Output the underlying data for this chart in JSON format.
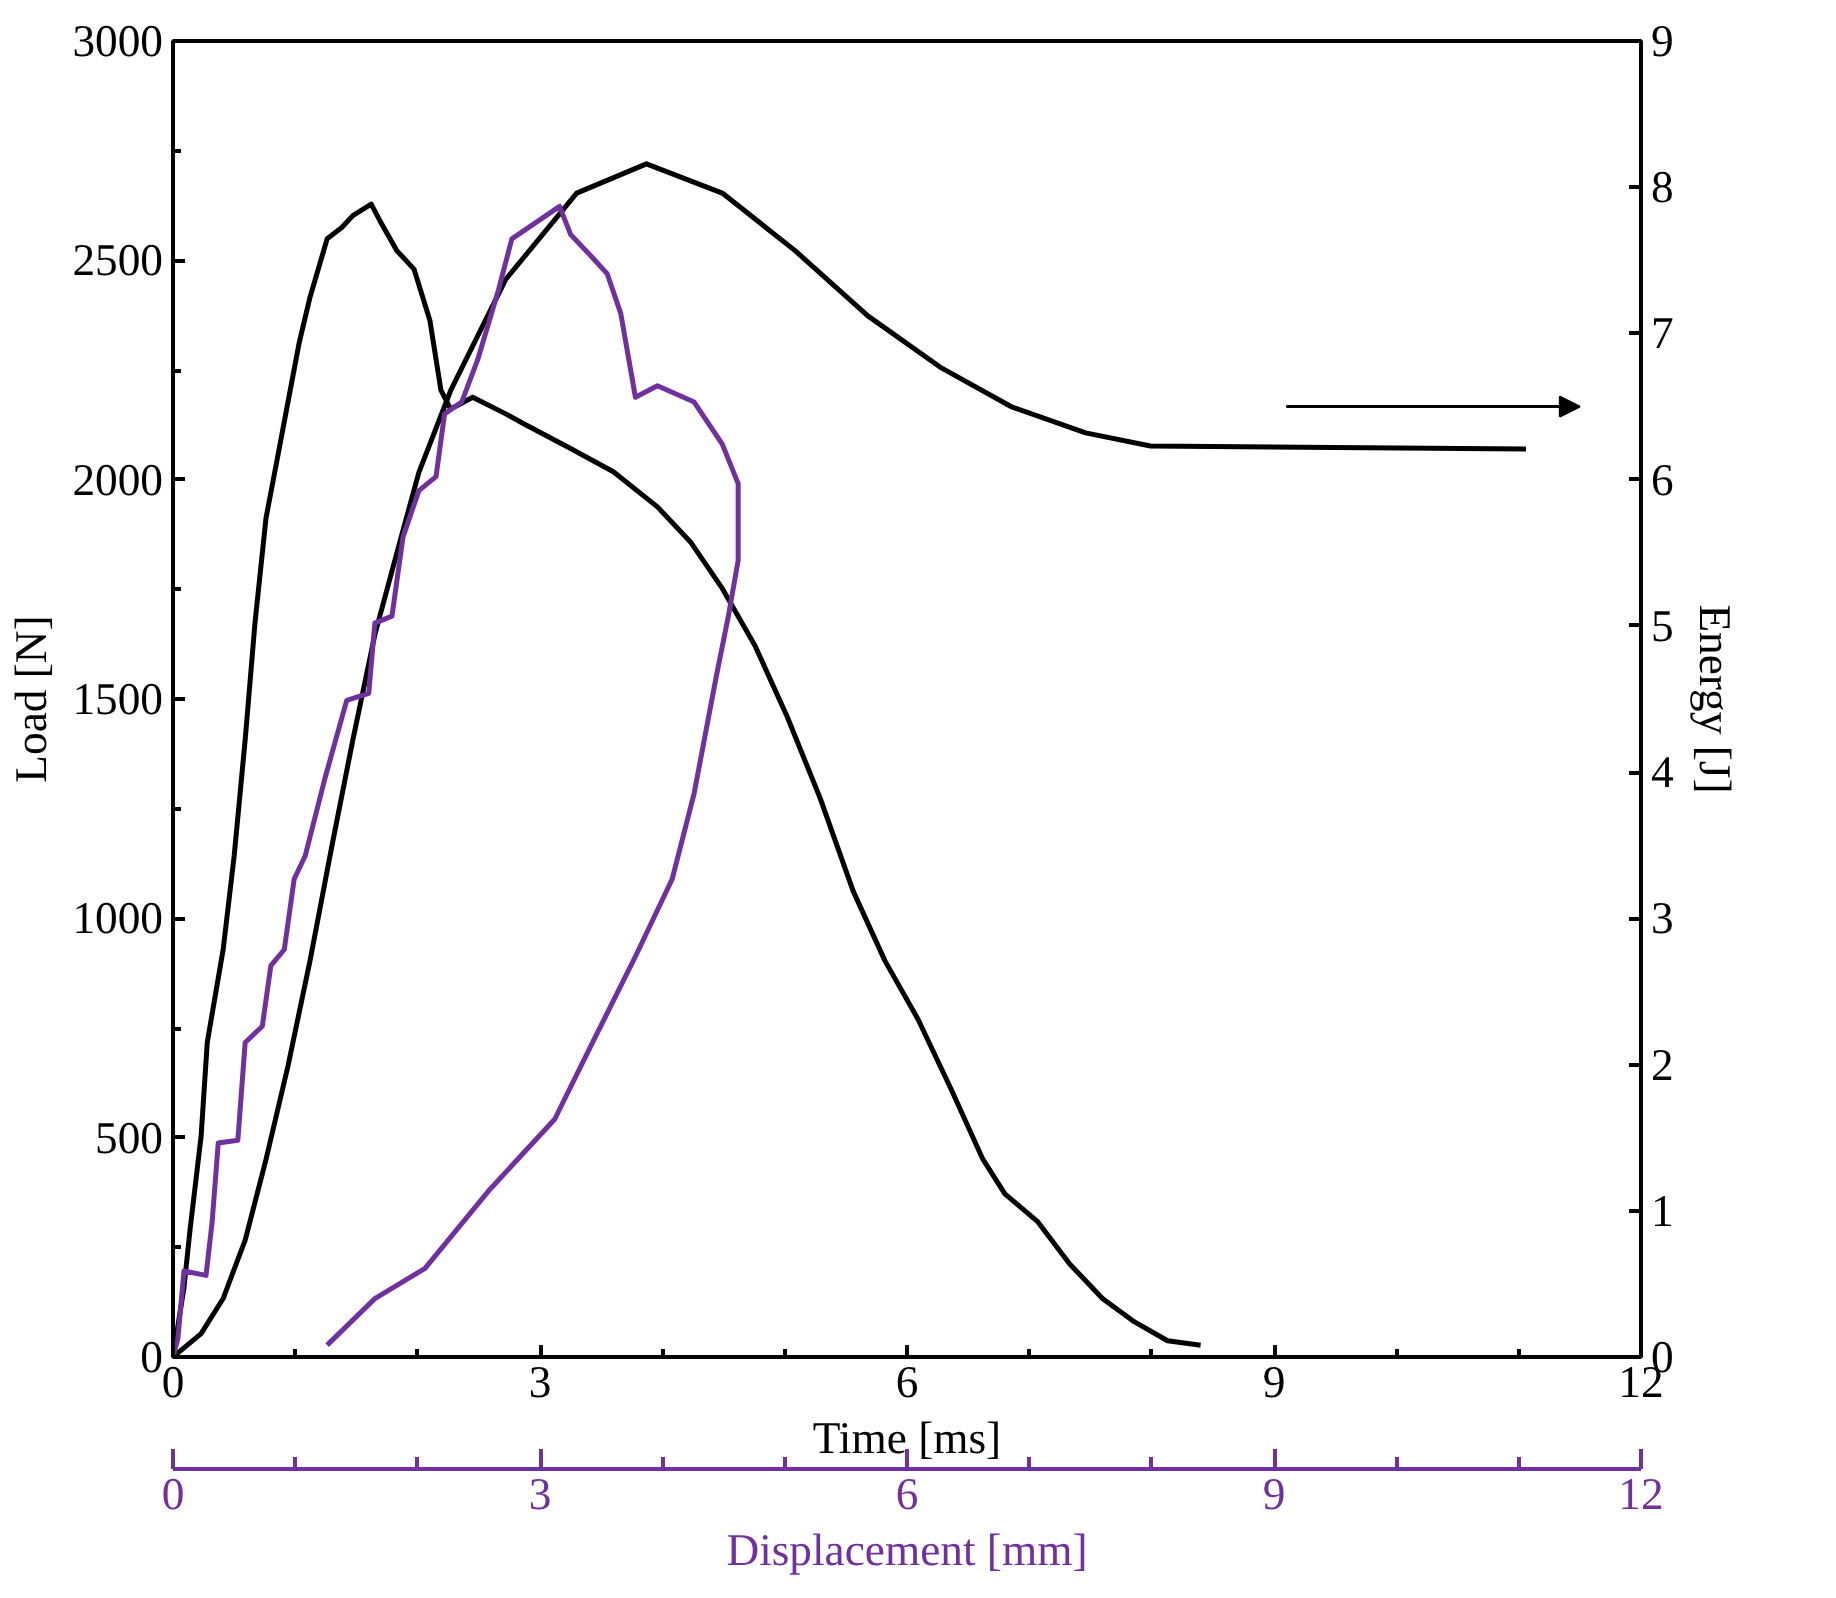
{
  "chart_data": {
    "type": "line",
    "xlabel": "Time [ms]",
    "ylabel": "Load [N]",
    "y2label": "Energy [J]",
    "x2label": "Displacement [mm]",
    "xlim": [
      0,
      12
    ],
    "xticks": [
      0,
      3,
      6,
      9,
      12
    ],
    "ylim": [
      0,
      3000
    ],
    "yticks": [
      0,
      500,
      1000,
      1500,
      2000,
      2500,
      3000
    ],
    "y2lim": [
      0,
      9
    ],
    "y2ticks": [
      0,
      1,
      2,
      3,
      4,
      5,
      6,
      7,
      8,
      9
    ],
    "x2lim": [
      0,
      12
    ],
    "x2ticks": [
      0,
      3,
      6,
      9,
      12
    ],
    "grid": false,
    "marker": "none",
    "line_style": "solid",
    "series": [
      {
        "color": "#000000",
        "x": [
          0,
          0.09,
          0.14,
          0.23,
          0.28,
          0.41,
          0.5,
          0.59,
          0.67,
          0.76,
          0.85,
          0.94,
          1.03,
          1.12,
          1.26,
          1.38,
          1.47,
          1.62,
          1.69,
          1.83,
          1.97,
          2.1,
          2.19,
          2.27,
          2.45,
          2.72,
          2.89,
          3.25,
          3.6,
          3.96,
          4.23,
          4.49,
          4.76,
          5.02,
          5.29,
          5.56,
          5.82,
          6.09,
          6.36,
          6.62,
          6.8,
          7.07,
          7.33,
          7.6,
          7.86,
          8.13,
          8.4
        ],
        "values": [
          0,
          159,
          292,
          504,
          717,
          929,
          1142,
          1407,
          1673,
          1912,
          2044,
          2177,
          2310,
          2416,
          2549,
          2575,
          2602,
          2628,
          2591,
          2522,
          2480,
          2363,
          2204,
          2161,
          2188,
          2150,
          2124,
          2071,
          2018,
          1938,
          1858,
          1752,
          1620,
          1460,
          1274,
          1062,
          903,
          770,
          611,
          451,
          372,
          308,
          212,
          133,
          80,
          37,
          27
        ]
      },
      {
        "color": "#000000",
        "axis": "y2",
        "x": [
          0,
          0.23,
          0.41,
          0.59,
          0.76,
          0.94,
          1.12,
          1.3,
          1.47,
          1.65,
          1.83,
          2.01,
          2.27,
          2.72,
          3.3,
          3.87,
          4.49,
          5.08,
          5.68,
          6.27,
          6.85,
          7.46,
          7.99,
          11.06
        ],
        "values": [
          0,
          0.16,
          0.4,
          0.8,
          1.35,
          1.99,
          2.71,
          3.5,
          4.22,
          4.94,
          5.5,
          6.05,
          6.61,
          7.37,
          7.96,
          8.16,
          7.96,
          7.57,
          7.12,
          6.77,
          6.5,
          6.32,
          6.23,
          6.21
        ]
      },
      {
        "color": "#7030a0",
        "axis": "x2",
        "x": [
          0,
          0.04,
          0.09,
          0.27,
          0.32,
          0.37,
          0.53,
          0.59,
          0.73,
          0.8,
          0.91,
          0.99,
          1.08,
          1.24,
          1.42,
          1.6,
          1.65,
          1.79,
          1.88,
          2.01,
          2.15,
          2.22,
          2.36,
          2.49,
          2.66,
          2.77,
          3.16,
          3.25,
          3.43,
          3.55,
          3.66,
          3.78,
          3.96,
          4.26,
          4.49,
          4.62,
          4.62,
          4.54,
          4.44,
          4.26,
          4.08,
          3.78,
          3.43,
          3.12,
          2.59,
          2.06,
          1.65,
          1.26
        ],
        "values": [
          0,
          42,
          196,
          186,
          308,
          488,
          494,
          717,
          754,
          892,
          929,
          1089,
          1142,
          1317,
          1497,
          1513,
          1673,
          1689,
          1869,
          1975,
          2007,
          2150,
          2177,
          2273,
          2432,
          2549,
          2623,
          2559,
          2506,
          2469,
          2379,
          2188,
          2214,
          2177,
          2081,
          1991,
          1816,
          1689,
          1550,
          1285,
          1089,
          913,
          717,
          542,
          382,
          202,
          133,
          27
        ]
      }
    ]
  }
}
